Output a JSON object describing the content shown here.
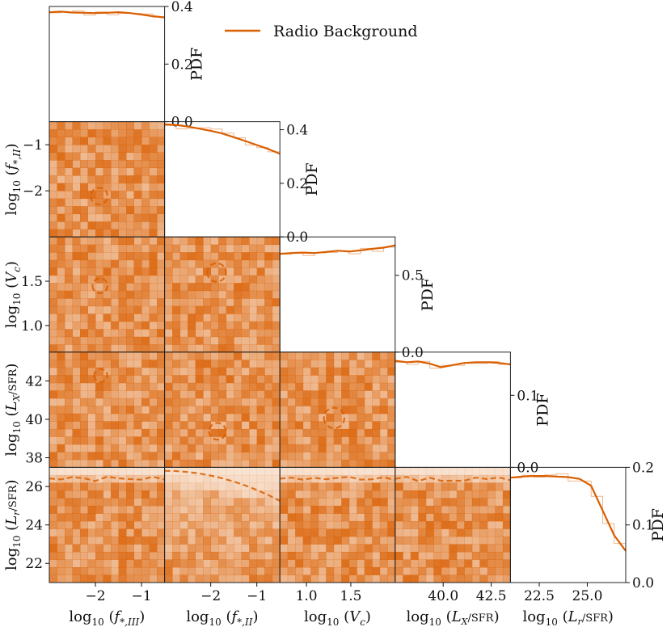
{
  "chart_data": {
    "type": "corner-plot",
    "legend": {
      "label": "Radio Background",
      "placement": "top-right",
      "color": "#d95f02"
    },
    "color": "#d95f02",
    "parameters": [
      {
        "key": "fIII",
        "tex": [
          "log",
          "10",
          " (f",
          "*,III",
          ")"
        ],
        "range": [
          -3.0,
          -0.5
        ],
        "ticks": [
          -2,
          -1
        ],
        "tick_labels": [
          "−2",
          "−1"
        ]
      },
      {
        "key": "fII",
        "tex": [
          "log",
          "10",
          " (f",
          "*,II",
          ")"
        ],
        "range": [
          -3.0,
          -0.5
        ],
        "ticks": [
          -2,
          -1
        ],
        "tick_labels": [
          "−2",
          "−1"
        ]
      },
      {
        "key": "Vc",
        "tex": [
          "log",
          "10",
          " (V",
          "c",
          ")"
        ],
        "range": [
          0.7,
          2.0
        ],
        "ticks": [
          1.0,
          1.5
        ],
        "tick_labels": [
          "1.0",
          "1.5"
        ]
      },
      {
        "key": "LX",
        "frac": [
          "L",
          "X",
          "SFR"
        ],
        "range": [
          37.5,
          43.5
        ],
        "ticks": [
          38,
          40,
          42
        ],
        "tick_labels": [
          "38",
          "40",
          "42"
        ],
        "x_ticks": [
          40,
          42.5
        ],
        "x_tick_labels": [
          "40.0",
          "42.5"
        ]
      },
      {
        "key": "Lr",
        "frac": [
          "L",
          "r",
          "SFR"
        ],
        "range": [
          21.0,
          27.0
        ],
        "ticks": [
          22,
          24,
          26
        ],
        "tick_labels": [
          "22",
          "24",
          "26"
        ],
        "x_ticks": [
          22.5,
          25
        ],
        "x_tick_labels": [
          "22.5",
          "25.0"
        ]
      }
    ],
    "pdf_axis_label": "PDF",
    "pdf_ticks": [
      {
        "values": [
          0.0,
          0.2,
          0.4
        ],
        "labels": [
          "0.0",
          "0.2",
          "0.4"
        ],
        "max": 0.4
      },
      {
        "values": [
          0.0,
          0.2,
          0.4
        ],
        "labels": [
          "0.0",
          "0.2",
          "0.4"
        ],
        "max": 0.43
      },
      {
        "values": [
          0.0,
          0.5
        ],
        "labels": [
          "0.0",
          "0.5"
        ],
        "max": 0.75
      },
      {
        "values": [
          0.0,
          0.1
        ],
        "labels": [
          "0.0",
          "0.1"
        ],
        "max": 0.16
      },
      {
        "values": [
          0.0,
          0.1,
          0.2
        ],
        "labels": [
          "0.0",
          "0.1",
          "0.2"
        ],
        "max": 0.2
      }
    ],
    "marginals": [
      {
        "x": [
          -3.0,
          -2.75,
          -2.5,
          -2.25,
          -2.0,
          -1.75,
          -1.5,
          -1.25,
          -1.0,
          -0.75,
          -0.5
        ],
        "pdf": [
          0.38,
          0.382,
          0.379,
          0.378,
          0.377,
          0.378,
          0.38,
          0.377,
          0.372,
          0.366,
          0.362
        ]
      },
      {
        "x": [
          -3.0,
          -2.75,
          -2.5,
          -2.25,
          -2.0,
          -1.75,
          -1.5,
          -1.25,
          -1.0,
          -0.75,
          -0.5
        ],
        "pdf": [
          0.42,
          0.418,
          0.412,
          0.404,
          0.396,
          0.386,
          0.372,
          0.358,
          0.343,
          0.328,
          0.31
        ]
      },
      {
        "x": [
          0.7,
          0.83,
          0.96,
          1.09,
          1.22,
          1.35,
          1.48,
          1.61,
          1.74,
          1.87,
          2.0
        ],
        "pdf": [
          0.64,
          0.645,
          0.648,
          0.645,
          0.652,
          0.66,
          0.655,
          0.662,
          0.672,
          0.68,
          0.695
        ]
      },
      {
        "x": [
          37.5,
          38.1,
          38.7,
          39.3,
          39.9,
          40.5,
          41.1,
          41.7,
          42.3,
          42.9,
          43.5
        ],
        "pdf": [
          0.148,
          0.146,
          0.147,
          0.144,
          0.139,
          0.142,
          0.145,
          0.146,
          0.146,
          0.145,
          0.143
        ]
      },
      {
        "x": [
          21.0,
          21.6,
          22.2,
          22.8,
          23.4,
          24.0,
          24.6,
          25.2,
          25.8,
          26.4,
          27.0
        ],
        "pdf": [
          0.182,
          0.184,
          0.185,
          0.185,
          0.184,
          0.183,
          0.18,
          0.168,
          0.125,
          0.082,
          0.055
        ]
      }
    ]
  }
}
